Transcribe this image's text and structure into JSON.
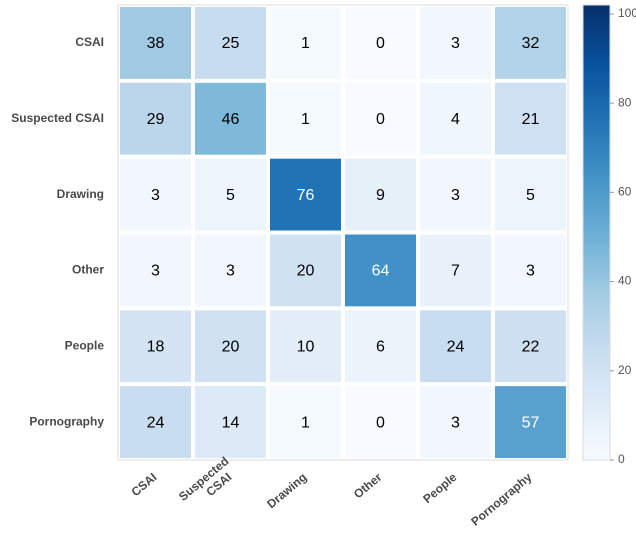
{
  "chart_data": {
    "type": "heatmap",
    "x_categories": [
      "CSAI",
      "Suspected CSAI",
      "Drawing",
      "Other",
      "People",
      "Pornography"
    ],
    "y_categories": [
      "CSAI",
      "Suspected CSAI",
      "Drawing",
      "Other",
      "People",
      "Pornography"
    ],
    "values": [
      [
        38,
        25,
        1,
        0,
        3,
        32
      ],
      [
        29,
        46,
        1,
        0,
        4,
        21
      ],
      [
        3,
        5,
        76,
        9,
        3,
        5
      ],
      [
        3,
        3,
        20,
        64,
        7,
        3
      ],
      [
        18,
        20,
        10,
        6,
        24,
        22
      ],
      [
        24,
        14,
        1,
        0,
        3,
        57
      ]
    ],
    "colormap": [
      "#f7fbff",
      "#deebf7",
      "#c6dbef",
      "#9ecae1",
      "#6baed6",
      "#4292c6",
      "#2171b5",
      "#08519c",
      "#08306b"
    ],
    "clim": [
      0,
      102
    ],
    "cticks": [
      0,
      20,
      40,
      60,
      80,
      100
    ]
  }
}
